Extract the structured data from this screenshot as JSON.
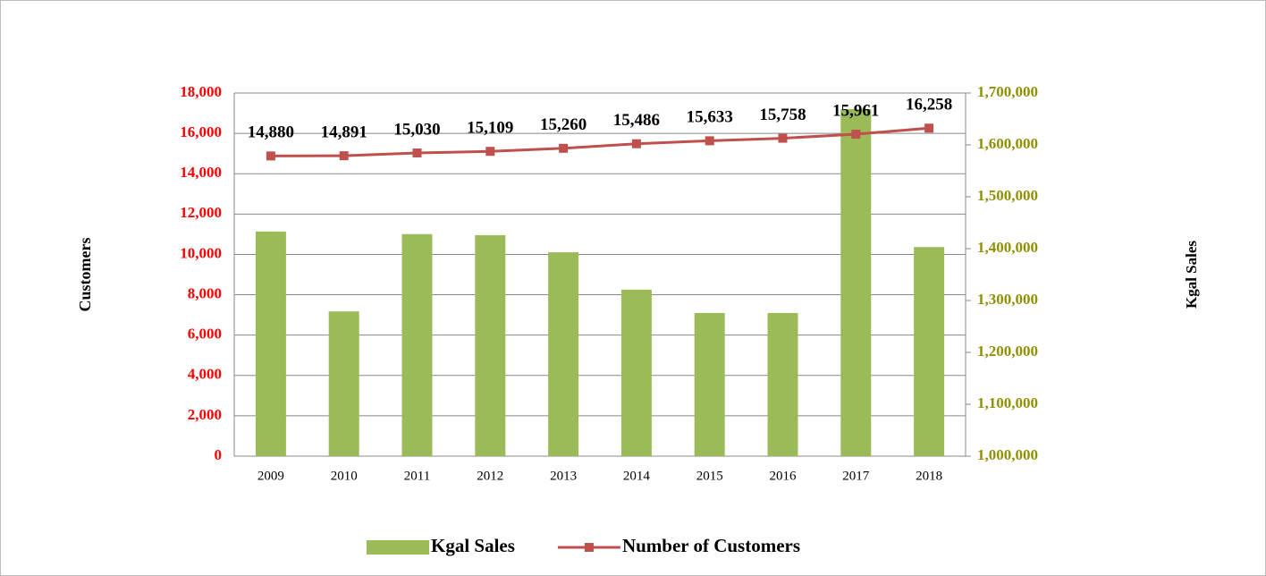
{
  "chart_data": {
    "type": "bar_line",
    "categories": [
      "2009",
      "2010",
      "2011",
      "2012",
      "2013",
      "2014",
      "2015",
      "2016",
      "2017",
      "2018"
    ],
    "y_label": "Customers",
    "y2_label": "Kgal Sales",
    "ylim": [
      0,
      18000
    ],
    "yticks": [
      0,
      {
        "value": 2000,
        "label": "2,000"
      },
      {
        "value": 4000,
        "label": "4,000"
      },
      {
        "value": 6000,
        "label": "6,000"
      },
      {
        "value": 8000,
        "label": "8,000"
      },
      {
        "value": 10000,
        "label": "10,000"
      },
      {
        "value": 12000,
        "label": "12,000"
      },
      {
        "value": 14000,
        "label": "14,000"
      },
      {
        "value": 16000,
        "label": "16,000"
      },
      {
        "value": 18000,
        "label": "18,000"
      }
    ],
    "y2lim": [
      1000000,
      1700000
    ],
    "y2ticks": [
      {
        "value": 1000000,
        "label": "1,000,000"
      },
      {
        "value": 1100000,
        "label": "1,100,000"
      },
      {
        "value": 1200000,
        "label": "1,200,000"
      },
      {
        "value": 1300000,
        "label": "1,300,000"
      },
      {
        "value": 1400000,
        "label": "1,400,000"
      },
      {
        "value": 1500000,
        "label": "1,500,000"
      },
      {
        "value": 1600000,
        "label": "1,600,000"
      },
      {
        "value": 1700000,
        "label": "1,700,000"
      }
    ],
    "grid": true,
    "legend": "bottom",
    "series": [
      {
        "name": "Kgal Sales",
        "type": "bar",
        "axis": "y2",
        "color": "#9bbb59",
        "values": [
          1433000,
          1279000,
          1428000,
          1426000,
          1393000,
          1321000,
          1276000,
          1276000,
          1669000,
          1403000
        ]
      },
      {
        "name": "Number of Customers",
        "type": "line",
        "axis": "y",
        "color": "#c0504d",
        "values": [
          14880,
          14891,
          15030,
          15109,
          15260,
          15486,
          15633,
          15758,
          15961,
          16258
        ],
        "value_labels": [
          "14,880",
          "14,891",
          "15,030",
          "15,109",
          "15,260",
          "15,486",
          "15,633",
          "15,758",
          "15,961",
          "16,258"
        ]
      }
    ]
  }
}
